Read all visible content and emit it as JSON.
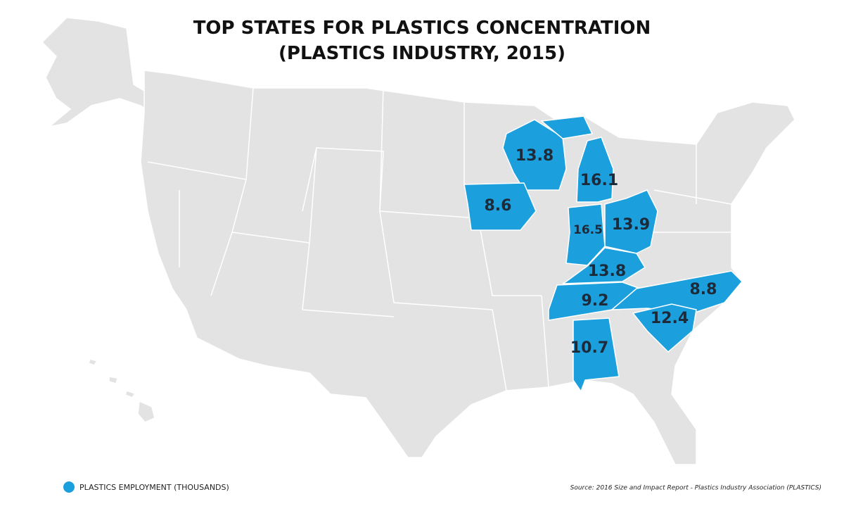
{
  "title": "TOP STATES FOR PLASTICS CONCENTRATION",
  "subtitle": "(PLASTICS INDUSTRY, 2015)",
  "legend": {
    "label": "PLASTICS EMPLOYMENT (THOUSANDS)",
    "color": "#1ca0dd"
  },
  "source": "Source: 2016 Size and Impact Report - Plastics Industry Association (PLASTICS)",
  "regions": [
    {
      "value": 13.8
    },
    {
      "value": 16.1
    },
    {
      "value": 8.6
    },
    {
      "value": 16.5
    },
    {
      "value": 13.9
    },
    {
      "value": 13.8
    },
    {
      "value": 9.2
    },
    {
      "value": 8.8
    },
    {
      "value": 12.4
    },
    {
      "value": 10.7
    }
  ]
}
